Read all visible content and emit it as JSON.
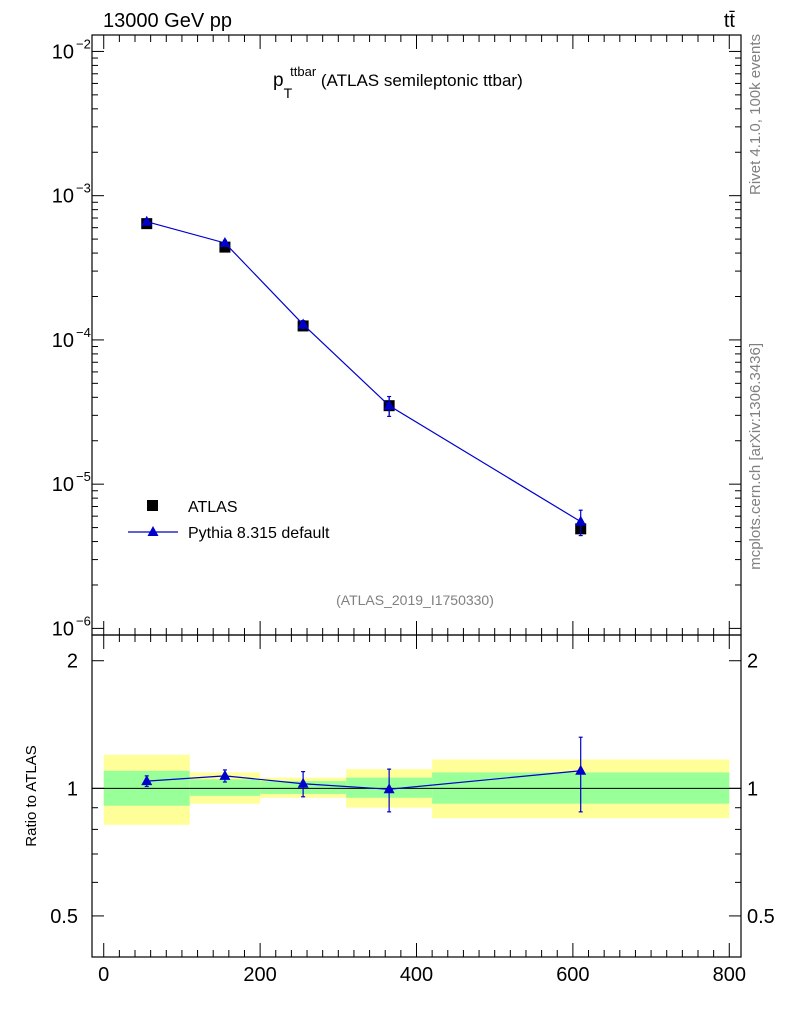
{
  "header": {
    "left": "13000 GeV pp",
    "right": "tt̄"
  },
  "side_text": {
    "top": "Rivet 4.1.0,  100k events",
    "bottom": "mcplots.cern.ch [arXiv:1306.3436]"
  },
  "colors": {
    "data": "#000000",
    "mc": "#0000cc",
    "band_inner": "#99ff99",
    "band_outer": "#ffff99",
    "watermark": "#808080"
  },
  "chart_data": [
    {
      "type": "scatter",
      "panel": "main",
      "title_main": "p",
      "title_sub": "T",
      "title_sup": "ttbar",
      "title_rest": " (ATLAS semileptonic ttbar)",
      "analysis_label": "(ATLAS_2019_I1750330)",
      "xlim": [
        -15,
        815
      ],
      "ylim": [
        9e-07,
        0.013
      ],
      "yscale": "log",
      "ytick_labels": [
        {
          "value": 0.01,
          "base": "10",
          "exp": "−2"
        },
        {
          "value": 0.001,
          "base": "10",
          "exp": "−3"
        },
        {
          "value": 0.0001,
          "base": "10",
          "exp": "−4"
        },
        {
          "value": 1e-05,
          "base": "10",
          "exp": "−5"
        },
        {
          "value": 1e-06,
          "base": "10",
          "exp": "−6"
        }
      ],
      "legend": {
        "placement": "bottom-left",
        "entries": [
          "ATLAS",
          "Pythia 8.315 default"
        ]
      },
      "series": [
        {
          "name": "ATLAS",
          "marker": "square",
          "x": [
            55,
            155,
            255,
            365,
            610
          ],
          "y": [
            0.00064,
            0.00044,
            0.000125,
            3.5e-05,
            4.9e-06
          ],
          "x_low": [
            0,
            110,
            200,
            310,
            420
          ],
          "x_high": [
            110,
            200,
            310,
            420,
            800
          ],
          "yerr": [
            3e-05,
            2e-05,
            6e-06,
            5e-06,
            4e-07
          ]
        },
        {
          "name": "Pythia 8.315 default",
          "marker": "triangle",
          "x": [
            55,
            155,
            255,
            365,
            610
          ],
          "y": [
            0.00066,
            0.00047,
            0.000128,
            3.5e-05,
            5.5e-06
          ],
          "yerr": [
            2e-05,
            2e-05,
            8e-06,
            5.5e-06,
            1.1e-06
          ]
        }
      ]
    },
    {
      "type": "scatter",
      "panel": "ratio",
      "ylabel": "Ratio to ATLAS",
      "xlim": [
        -15,
        815
      ],
      "ylim": [
        0.4,
        2.3
      ],
      "yscale": "log",
      "yticks": [
        0.5,
        1,
        2
      ],
      "ytick_labels": [
        "0.5",
        "1",
        "2"
      ],
      "xticks": [
        0,
        200,
        400,
        600,
        800
      ],
      "xtick_labels": [
        "0",
        "200",
        "400",
        "600",
        "800"
      ],
      "bands": {
        "x_low": [
          0,
          110,
          200,
          310,
          420
        ],
        "x_high": [
          110,
          200,
          310,
          420,
          800
        ],
        "inner_low": [
          0.91,
          0.96,
          0.97,
          0.95,
          0.92
        ],
        "inner_high": [
          1.1,
          1.05,
          1.04,
          1.06,
          1.09
        ],
        "outer_low": [
          0.82,
          0.92,
          0.95,
          0.9,
          0.85
        ],
        "outer_high": [
          1.2,
          1.09,
          1.06,
          1.11,
          1.17
        ]
      },
      "series": [
        {
          "name": "Pythia 8.315 default",
          "x": [
            55,
            155,
            255,
            365,
            610
          ],
          "y": [
            1.04,
            1.07,
            1.025,
            0.995,
            1.1
          ],
          "yerr": [
            0.03,
            0.035,
            0.07,
            0.115,
            0.22
          ]
        }
      ]
    }
  ]
}
